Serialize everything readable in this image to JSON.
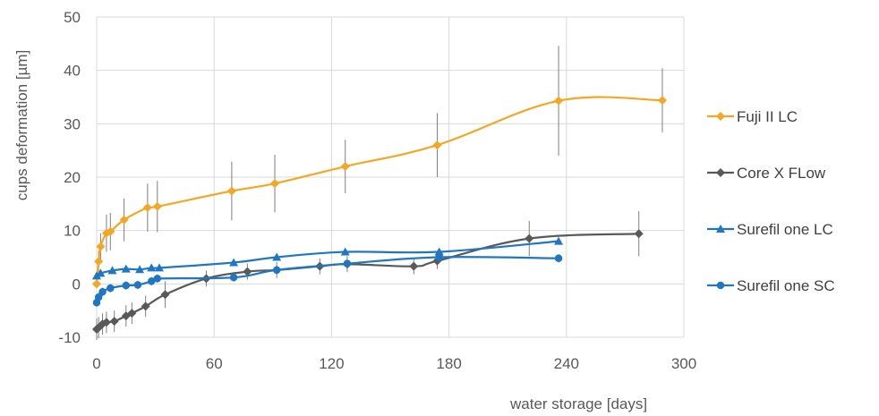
{
  "chart_data": {
    "type": "line",
    "title": "",
    "xlabel": "water storage [days]",
    "ylabel": "cups deformation [µm]",
    "xlim": [
      0,
      300
    ],
    "ylim": [
      -10,
      50
    ],
    "x_ticks": [
      "0",
      "60",
      "120",
      "180",
      "240",
      "300"
    ],
    "y_ticks": [
      "-10",
      "0",
      "10",
      "20",
      "30",
      "40",
      "50"
    ],
    "grid": true,
    "legend": "right",
    "series": [
      {
        "name": "Fuji II LC",
        "color": "#f5a623",
        "marker": "diamond",
        "points": [
          {
            "x": 0,
            "y": 0,
            "err": 0
          },
          {
            "x": 1,
            "y": 4.2,
            "err": 2
          },
          {
            "x": 2,
            "y": 7,
            "err": 2.5
          },
          {
            "x": 5,
            "y": 9.5,
            "err": 3.5
          },
          {
            "x": 7,
            "y": 9.8,
            "err": 3.5
          },
          {
            "x": 14,
            "y": 12,
            "err": 4
          },
          {
            "x": 26,
            "y": 14.3,
            "err": 4.5
          },
          {
            "x": 31,
            "y": 14.5,
            "err": 4.8
          },
          {
            "x": 69,
            "y": 17.4,
            "err": 5.5
          },
          {
            "x": 91,
            "y": 18.8,
            "err": 5.4
          },
          {
            "x": 127,
            "y": 22,
            "err": 5
          },
          {
            "x": 174,
            "y": 26,
            "err": 6
          },
          {
            "x": 236,
            "y": 34.3,
            "err": 10.3
          },
          {
            "x": 289,
            "y": 34.4,
            "err": 6
          }
        ]
      },
      {
        "name": "Core X FLow",
        "color": "#595959",
        "marker": "diamond",
        "points": [
          {
            "x": 0,
            "y": -8.5,
            "err": 2
          },
          {
            "x": 1,
            "y": -8.2,
            "err": 2
          },
          {
            "x": 3,
            "y": -7.5,
            "err": 2
          },
          {
            "x": 5,
            "y": -7.2,
            "err": 2
          },
          {
            "x": 9,
            "y": -7,
            "err": 2
          },
          {
            "x": 15,
            "y": -6,
            "err": 2
          },
          {
            "x": 18,
            "y": -5.5,
            "err": 2
          },
          {
            "x": 25,
            "y": -4.2,
            "err": 2
          },
          {
            "x": 35,
            "y": -2,
            "err": 2.5
          },
          {
            "x": 56,
            "y": 1,
            "err": 1.5
          },
          {
            "x": 77,
            "y": 2.3,
            "err": 1.5
          },
          {
            "x": 92,
            "y": 2.6,
            "err": 1.5
          },
          {
            "x": 114,
            "y": 3.3,
            "err": 1.5
          },
          {
            "x": 128,
            "y": 3.7,
            "err": 1.5
          },
          {
            "x": 162,
            "y": 3.3,
            "err": 1.5
          },
          {
            "x": 174,
            "y": 4.3,
            "err": 1.5
          },
          {
            "x": 221,
            "y": 8.5,
            "err": 3.3
          },
          {
            "x": 277,
            "y": 9.4,
            "err": 4.2
          }
        ]
      },
      {
        "name": "Surefil one LC",
        "color": "#1f77c4",
        "marker": "triangle",
        "points": [
          {
            "x": 0,
            "y": 1.5,
            "err": 0.5
          },
          {
            "x": 2,
            "y": 2,
            "err": 0.6
          },
          {
            "x": 8,
            "y": 2.5,
            "err": 0.6
          },
          {
            "x": 15,
            "y": 2.8,
            "err": 0.6
          },
          {
            "x": 22,
            "y": 2.7,
            "err": 0.6
          },
          {
            "x": 28,
            "y": 3,
            "err": 0.6
          },
          {
            "x": 32,
            "y": 3,
            "err": 0.6
          },
          {
            "x": 70,
            "y": 4,
            "err": 0.6
          },
          {
            "x": 92,
            "y": 5,
            "err": 0.6
          },
          {
            "x": 127,
            "y": 6,
            "err": 0.6
          },
          {
            "x": 175,
            "y": 6,
            "err": 0.6
          },
          {
            "x": 236,
            "y": 8,
            "err": 0.6
          }
        ]
      },
      {
        "name": "Surefil one SC",
        "color": "#1f77c4",
        "marker": "circle",
        "points": [
          {
            "x": 0,
            "y": -3.5,
            "err": 0.8
          },
          {
            "x": 1,
            "y": -2.5,
            "err": 0.8
          },
          {
            "x": 3,
            "y": -1.5,
            "err": 0.8
          },
          {
            "x": 7,
            "y": -0.8,
            "err": 0.8
          },
          {
            "x": 15,
            "y": -0.3,
            "err": 0.8
          },
          {
            "x": 21,
            "y": -0.2,
            "err": 0.8
          },
          {
            "x": 28,
            "y": 0.5,
            "err": 0.8
          },
          {
            "x": 31,
            "y": 1,
            "err": 0.8
          },
          {
            "x": 70,
            "y": 1.2,
            "err": 0.8
          },
          {
            "x": 92,
            "y": 2.6,
            "err": 0.8
          },
          {
            "x": 128,
            "y": 3.8,
            "err": 0.8
          },
          {
            "x": 175,
            "y": 5,
            "err": 0.8
          },
          {
            "x": 236,
            "y": 4.8,
            "err": 0.8
          }
        ]
      }
    ]
  }
}
